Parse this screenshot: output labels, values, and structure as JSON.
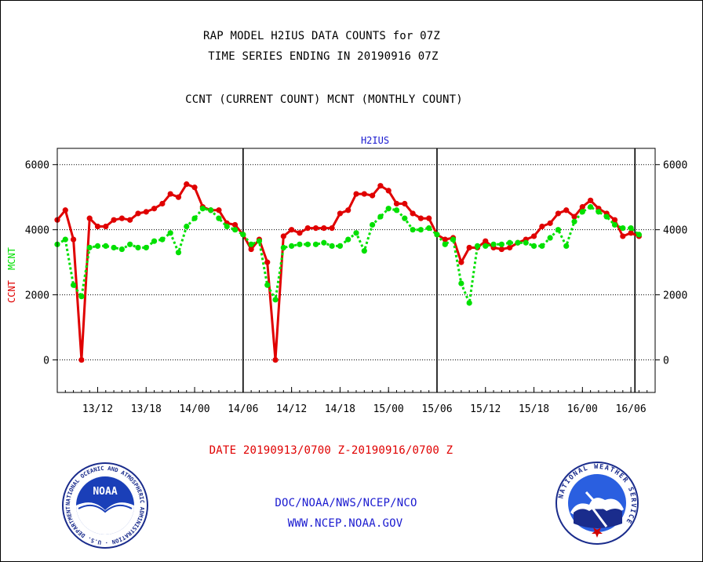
{
  "header": {
    "title_line1": "RAP MODEL H2IUS DATA COUNTS for 07Z",
    "title_line2": "TIME SERIES ENDING IN 20190916 07Z",
    "subtitle": "CCNT (CURRENT COUNT) MCNT (MONTHLY COUNT)"
  },
  "footer": {
    "date_range": "DATE 20190913/0700 Z-20190916/0700 Z",
    "org": "DOC/NOAA/NWS/NCEP/NCO",
    "url": "WWW.NCEP.NOAA.GOV",
    "noaa_logo_text": "NOAA",
    "noaa_logo_ring": "NATIONAL OCEANIC AND ATMOSPHERIC ADMINISTRATION · U.S. DEPARTMENT OF COMMERCE",
    "nws_logo_ring": "NATIONAL WEATHER SERVICE"
  },
  "colors": {
    "ccnt": "#e00000",
    "mcnt": "#00e000",
    "grid": "#000000",
    "panel_label": "#1a1ad0"
  },
  "chart_data": {
    "type": "line",
    "panel_label": "H2IUS",
    "ylabel_ccnt": "CCNT",
    "ylabel_mcnt": "MCNT",
    "ylim": [
      -1000,
      6500
    ],
    "yticks": [
      0,
      2000,
      4000,
      6000
    ],
    "grid": true,
    "x_range_hours": [
      0,
      74
    ],
    "x_tick_labels": [
      "13/12",
      "13/18",
      "14/00",
      "14/06",
      "14/12",
      "14/18",
      "15/00",
      "15/06",
      "15/12",
      "15/18",
      "16/00",
      "16/06"
    ],
    "x_tick_hours": [
      5,
      11,
      17,
      23,
      29,
      35,
      41,
      47,
      53,
      59,
      65,
      71
    ],
    "day_boundaries_hours": [
      23,
      47,
      71.5
    ],
    "series": [
      {
        "name": "CCNT",
        "x": [
          0,
          1,
          2,
          3,
          4,
          5,
          6,
          7,
          8,
          9,
          10,
          11,
          12,
          13,
          14,
          15,
          16,
          17,
          18,
          19,
          20,
          21,
          22,
          23,
          24,
          25,
          26,
          27,
          28,
          29,
          30,
          31,
          32,
          33,
          34,
          35,
          36,
          37,
          38,
          39,
          40,
          41,
          42,
          43,
          44,
          45,
          46,
          47,
          48,
          49,
          50,
          51,
          52,
          53,
          54,
          55,
          56,
          57,
          58,
          59,
          60,
          61,
          62,
          63,
          64,
          65,
          66,
          67,
          68,
          69,
          70,
          71,
          72
        ],
        "values": [
          4300,
          4600,
          3700,
          0,
          4350,
          4100,
          4100,
          4300,
          4350,
          4300,
          4500,
          4550,
          4650,
          4800,
          5100,
          5000,
          5400,
          5300,
          4700,
          4600,
          4600,
          4200,
          4150,
          3850,
          3400,
          3700,
          3000,
          0,
          3800,
          4000,
          3900,
          4050,
          4050,
          4050,
          4050,
          4500,
          4600,
          5100,
          5100,
          5050,
          5350,
          5200,
          4800,
          4800,
          4500,
          4350,
          4350,
          3850,
          3700,
          3750,
          3000,
          3450,
          3450,
          3650,
          3450,
          3400,
          3450,
          3600,
          3700,
          3800,
          4100,
          4200,
          4500,
          4600,
          4400,
          4700,
          4900,
          4650,
          4500,
          4300,
          3800,
          3900,
          3800
        ]
      },
      {
        "name": "MCNT",
        "x": [
          0,
          1,
          2,
          3,
          4,
          5,
          6,
          7,
          8,
          9,
          10,
          11,
          12,
          13,
          14,
          15,
          16,
          17,
          18,
          19,
          20,
          21,
          22,
          23,
          24,
          25,
          26,
          27,
          28,
          29,
          30,
          31,
          32,
          33,
          34,
          35,
          36,
          37,
          38,
          39,
          40,
          41,
          42,
          43,
          44,
          45,
          46,
          47,
          48,
          49,
          50,
          51,
          52,
          53,
          54,
          55,
          56,
          57,
          58,
          59,
          60,
          61,
          62,
          63,
          64,
          65,
          66,
          67,
          68,
          69,
          70,
          71,
          72
        ],
        "values": [
          3550,
          3700,
          2300,
          1950,
          3450,
          3500,
          3500,
          3450,
          3400,
          3550,
          3450,
          3450,
          3650,
          3700,
          3900,
          3300,
          4100,
          4350,
          4650,
          4600,
          4350,
          4100,
          4000,
          3850,
          3550,
          3650,
          2300,
          1850,
          3450,
          3500,
          3550,
          3550,
          3550,
          3600,
          3500,
          3500,
          3700,
          3900,
          3350,
          4150,
          4400,
          4650,
          4600,
          4350,
          4000,
          4000,
          4050,
          3850,
          3550,
          3700,
          2350,
          1750,
          3500,
          3500,
          3550,
          3550,
          3600,
          3600,
          3600,
          3500,
          3500,
          3750,
          4000,
          3500,
          4250,
          4550,
          4700,
          4550,
          4400,
          4150,
          4050,
          4050,
          3850
        ]
      }
    ]
  }
}
